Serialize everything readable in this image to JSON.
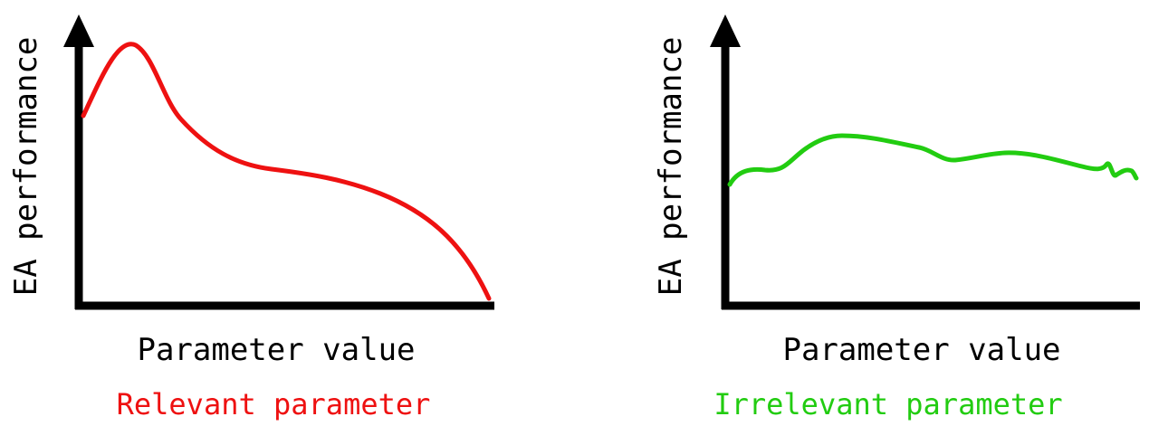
{
  "colors": {
    "axis": "#000000",
    "relevant": "#ee1111",
    "irrelevant": "#22cc11"
  },
  "panels": [
    {
      "y_axis_label": "EA performance",
      "x_axis_label": "Parameter value",
      "caption": "Relevant parameter",
      "curve_color": "relevant"
    },
    {
      "y_axis_label": "EA performance",
      "x_axis_label": "Parameter value",
      "caption": "Irrelevant parameter",
      "curve_color": "irrelevant"
    }
  ]
}
